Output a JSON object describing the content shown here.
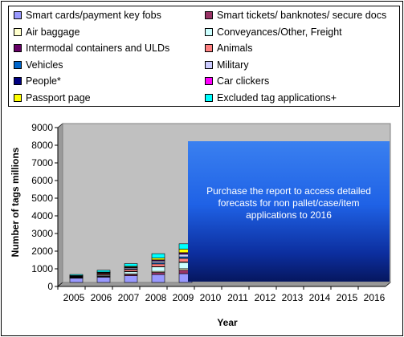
{
  "legend": [
    {
      "label": "Smart cards/payment key fobs",
      "color": "#9999ff"
    },
    {
      "label": "Smart tickets/ banknotes/ secure docs",
      "color": "#993366"
    },
    {
      "label": "Air baggage",
      "color": "#ffffcc"
    },
    {
      "label": "Conveyances/Other, Freight",
      "color": "#ccffff"
    },
    {
      "label": "Intermodal containers and ULDs",
      "color": "#660066"
    },
    {
      "label": "Animals",
      "color": "#ff8080"
    },
    {
      "label": "Vehicles",
      "color": "#0066cc"
    },
    {
      "label": "Military",
      "color": "#ccccff"
    },
    {
      "label": "People*",
      "color": "#000080"
    },
    {
      "label": "Car clickers",
      "color": "#ff00ff"
    },
    {
      "label": "Passport page",
      "color": "#ffff00"
    },
    {
      "label": "Excluded tag applications+",
      "color": "#00ffff"
    }
  ],
  "promo": {
    "text": "Purchase the report to access detailed forecasts for non pallet/case/item applications to 2016"
  },
  "chart_data": {
    "type": "bar",
    "stacked": true,
    "xlabel": "Year",
    "ylabel": "Number of tags millions",
    "ylim": [
      0,
      9000
    ],
    "yticks": [
      0,
      1000,
      2000,
      3000,
      4000,
      5000,
      6000,
      7000,
      8000,
      9000
    ],
    "categories": [
      "2005",
      "2006",
      "2007",
      "2008",
      "2009",
      "2010",
      "2011",
      "2012",
      "2013",
      "2014",
      "2015",
      "2016"
    ],
    "plot_background": "#c0c0c0",
    "series": [
      {
        "name": "Smart cards/payment key fobs",
        "color": "#9999ff",
        "values": [
          240,
          300,
          380,
          450,
          500,
          null,
          null,
          null,
          null,
          null,
          null,
          null
        ]
      },
      {
        "name": "Smart tickets/ banknotes/ secure docs",
        "color": "#993366",
        "values": [
          20,
          40,
          70,
          120,
          200,
          null,
          null,
          null,
          null,
          null,
          null,
          null
        ]
      },
      {
        "name": "Air baggage",
        "color": "#ffffcc",
        "values": [
          10,
          20,
          40,
          60,
          80,
          null,
          null,
          null,
          null,
          null,
          null,
          null
        ]
      },
      {
        "name": "Conveyances/Other, Freight",
        "color": "#ccffff",
        "values": [
          30,
          60,
          120,
          250,
          350,
          null,
          null,
          null,
          null,
          null,
          null,
          null
        ]
      },
      {
        "name": "Intermodal containers and ULDs",
        "color": "#660066",
        "values": [
          5,
          10,
          15,
          20,
          30,
          null,
          null,
          null,
          null,
          null,
          null,
          null
        ]
      },
      {
        "name": "Animals",
        "color": "#ff8080",
        "values": [
          40,
          60,
          100,
          150,
          200,
          null,
          null,
          null,
          null,
          null,
          null,
          null
        ]
      },
      {
        "name": "Vehicles",
        "color": "#0066cc",
        "values": [
          10,
          20,
          40,
          60,
          90,
          null,
          null,
          null,
          null,
          null,
          null,
          null
        ]
      },
      {
        "name": "Military",
        "color": "#ccccff",
        "values": [
          20,
          40,
          60,
          100,
          150,
          null,
          null,
          null,
          null,
          null,
          null,
          null
        ]
      },
      {
        "name": "People*",
        "color": "#000080",
        "values": [
          5,
          10,
          20,
          30,
          40,
          null,
          null,
          null,
          null,
          null,
          null,
          null
        ]
      },
      {
        "name": "Car clickers",
        "color": "#ff00ff",
        "values": [
          10,
          20,
          30,
          40,
          50,
          null,
          null,
          null,
          null,
          null,
          null,
          null
        ]
      },
      {
        "name": "Passport page",
        "color": "#ffff00",
        "values": [
          0,
          10,
          40,
          100,
          200,
          null,
          null,
          null,
          null,
          null,
          null,
          null
        ]
      },
      {
        "name": "Excluded tag applications+",
        "color": "#00ffff",
        "values": [
          60,
          100,
          150,
          250,
          300,
          null,
          null,
          null,
          null,
          null,
          null,
          null
        ]
      }
    ]
  }
}
